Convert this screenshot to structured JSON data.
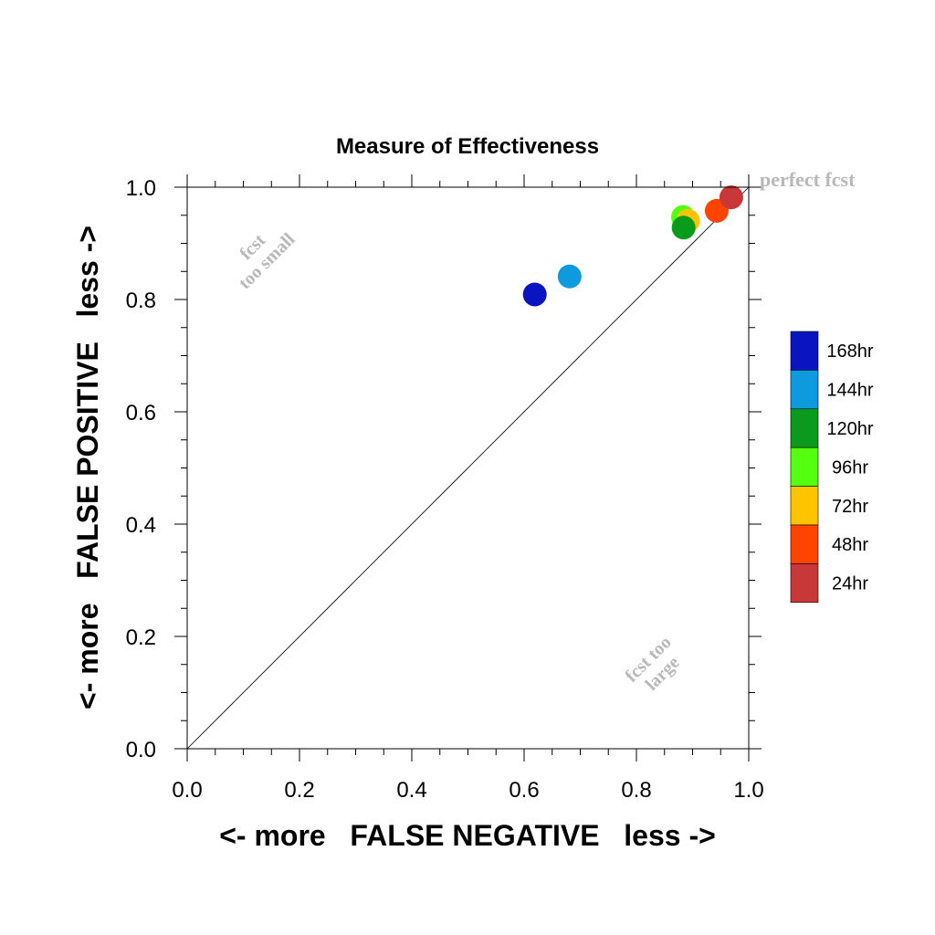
{
  "chart_data": {
    "type": "scatter",
    "title": "Measure of Effectiveness",
    "xlabel": "<- more   FALSE NEGATIVE   less ->",
    "ylabel": "<- more   FALSE POSITIVE   less ->",
    "xlim": [
      0.0,
      1.0
    ],
    "ylim": [
      0.0,
      1.0
    ],
    "xticks": [
      "0.0",
      "0.2",
      "0.4",
      "0.6",
      "0.8",
      "1.0"
    ],
    "yticks": [
      "0.0",
      "0.2",
      "0.4",
      "0.6",
      "0.8",
      "1.0"
    ],
    "x_tick_values": [
      0.0,
      0.2,
      0.4,
      0.6,
      0.8,
      1.0
    ],
    "y_tick_values": [
      0.0,
      0.2,
      0.4,
      0.6,
      0.8,
      1.0
    ],
    "grid": false,
    "diagonal_reference": true,
    "legend_position": "right",
    "series": [
      {
        "name": "168hr",
        "color": "#0a14c0",
        "x": 0.619,
        "y": 0.809
      },
      {
        "name": "144hr",
        "color": "#0d9ade",
        "x": 0.681,
        "y": 0.841
      },
      {
        "name": "120hr",
        "color": "#0a9a1c",
        "x": 0.884,
        "y": 0.928
      },
      {
        "name": "96hr",
        "color": "#55ff10",
        "x": 0.883,
        "y": 0.947
      },
      {
        "name": "72hr",
        "color": "#ffc400",
        "x": 0.892,
        "y": 0.94
      },
      {
        "name": "48hr",
        "color": "#ff4400",
        "x": 0.943,
        "y": 0.958
      },
      {
        "name": "24hr",
        "color": "#c83838",
        "x": 0.969,
        "y": 0.982
      }
    ],
    "annotations": {
      "perfect": "perfect fcst",
      "too_small_line1": "fcst",
      "too_small_line2": "too small",
      "too_large_line1": "fcst too",
      "too_large_line2": "large"
    },
    "annotation_color": "#b8b8b8"
  }
}
